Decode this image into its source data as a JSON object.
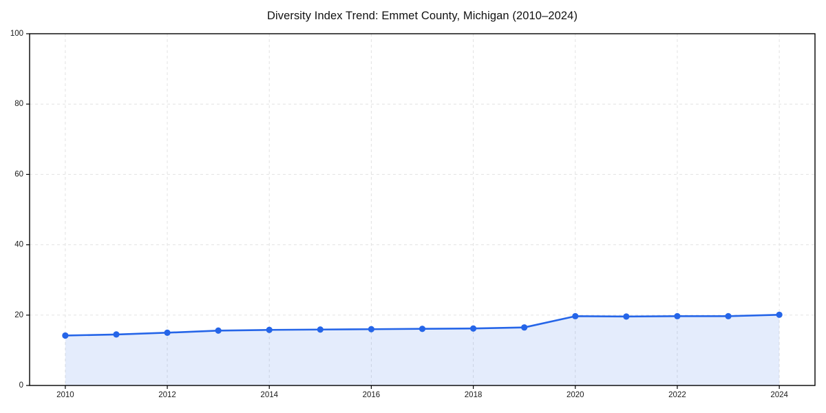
{
  "chart_data": {
    "type": "line",
    "title": "Diversity Index Trend: Emmet County, Michigan (2010–2024)",
    "x": [
      2010,
      2011,
      2012,
      2013,
      2014,
      2015,
      2016,
      2017,
      2018,
      2019,
      2020,
      2021,
      2022,
      2023,
      2024
    ],
    "series": [
      {
        "name": "Diversity Index",
        "values": [
          14.2,
          14.5,
          15.0,
          15.6,
          15.8,
          15.9,
          16.0,
          16.1,
          16.2,
          16.5,
          19.7,
          19.6,
          19.7,
          19.7,
          20.1
        ]
      }
    ],
    "xlabel": "",
    "ylabel": "",
    "xlim": [
      2009.3,
      2024.7
    ],
    "ylim": [
      0,
      100
    ],
    "xticks": [
      2010,
      2012,
      2014,
      2016,
      2018,
      2020,
      2022,
      2024
    ],
    "yticks": [
      0,
      20,
      40,
      60,
      80,
      100
    ],
    "grid": "dashed",
    "legend": "none",
    "area_fill": true,
    "colors": {
      "line": "#2565e8",
      "marker": "#2565e8",
      "fill_rgba": "rgba(37, 101, 232, 0.12)",
      "grid": "#e2e2e2",
      "spine": "#000000",
      "tick_text": "#1a1a1a",
      "title_text": "#111111"
    }
  }
}
